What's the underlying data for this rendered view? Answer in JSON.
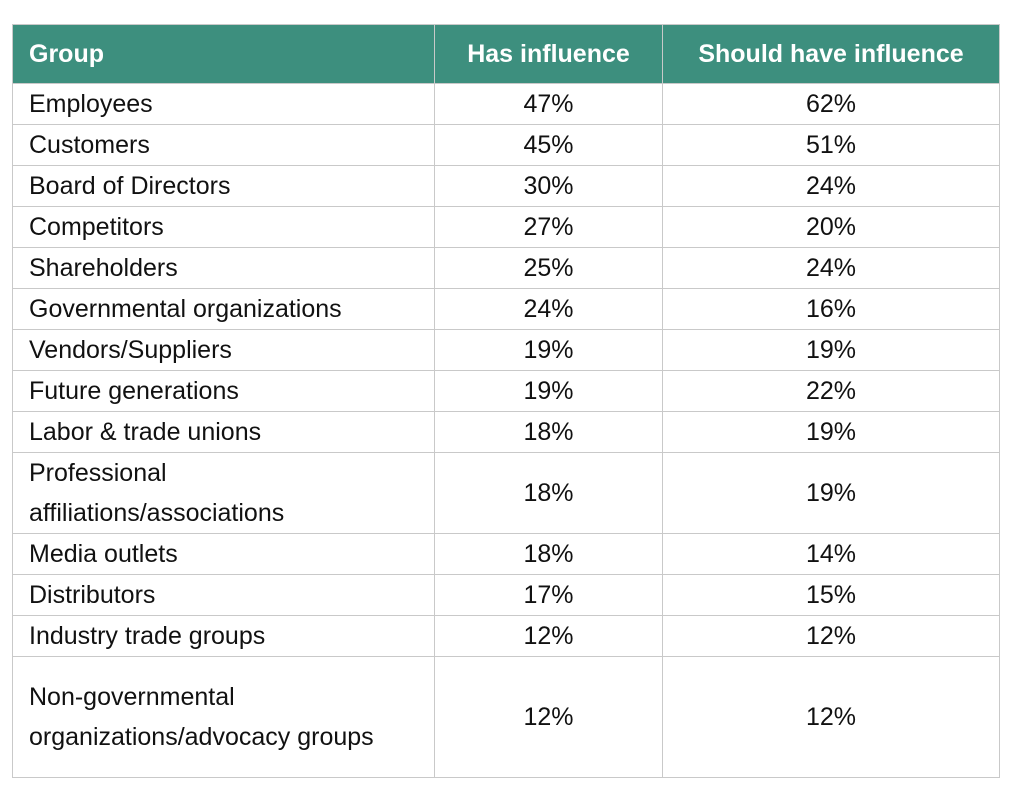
{
  "table": {
    "headers": [
      "Group",
      "Has influence",
      "Should have influence"
    ],
    "header_color": "#3d8f7e",
    "rows": [
      {
        "group": "Employees",
        "has": "47%",
        "should": "62%",
        "lines": 1
      },
      {
        "group": "Customers",
        "has": "45%",
        "should": "51%",
        "lines": 1
      },
      {
        "group": "Board of Directors",
        "has": "30%",
        "should": "24%",
        "lines": 1
      },
      {
        "group": "Competitors",
        "has": "27%",
        "should": "20%",
        "lines": 1
      },
      {
        "group": "Shareholders",
        "has": "25%",
        "should": "24%",
        "lines": 1
      },
      {
        "group": "Governmental organizations",
        "has": "24%",
        "should": "16%",
        "lines": 1
      },
      {
        "group": "Vendors/Suppliers",
        "has": "19%",
        "should": "19%",
        "lines": 1
      },
      {
        "group": "Future generations",
        "has": "19%",
        "should": "22%",
        "lines": 1
      },
      {
        "group": "Labor & trade unions",
        "has": "18%",
        "should": "19%",
        "lines": 1
      },
      {
        "group": "Professional affiliations/associations",
        "has": "18%",
        "should": "19%",
        "lines": 2
      },
      {
        "group": "Media outlets",
        "has": "18%",
        "should": "14%",
        "lines": 1
      },
      {
        "group": "Distributors",
        "has": "17%",
        "should": "15%",
        "lines": 1
      },
      {
        "group": "Industry trade groups",
        "has": "12%",
        "should": "12%",
        "lines": 1
      },
      {
        "group": "Non-governmental organizations/advocacy groups",
        "has": "12%",
        "should": "12%",
        "lines": 3
      }
    ]
  }
}
